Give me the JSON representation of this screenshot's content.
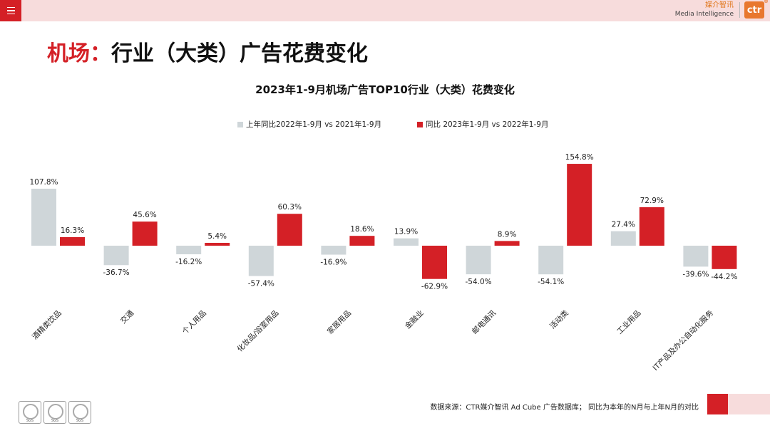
{
  "header": {
    "brand_cn": "媒介智讯",
    "brand_en": "Media Intelligence",
    "brand_logo": "ctr",
    "brand_reg": "®"
  },
  "page_title": {
    "highlight": "机场：",
    "rest": "行业（大类）广告花费变化"
  },
  "footer": {
    "source": "数据来源：CTR媒介智讯 Ad Cube 广告数据库； 同比为本年的N月与上年N月的对比",
    "badges": [
      "SGS",
      "SGS",
      "SGS"
    ]
  },
  "colors": {
    "series1": "#cfd6d9",
    "series2": "#d42026",
    "accent": "#d42026"
  },
  "chart_data": {
    "type": "bar",
    "title": "2023年1-9月机场广告TOP10行业（大类）花费变化",
    "categories": [
      "酒精类饮品",
      "交通",
      "个人用品",
      "化妆品/浴室用品",
      "家居用品",
      "金融业",
      "邮电通讯",
      "活动类",
      "工业用品",
      "IT产品及办公自动化服务"
    ],
    "series": [
      {
        "name": "上年同比2022年1-9月  vs 2021年1-9月",
        "values": [
          107.8,
          -36.7,
          -16.2,
          -57.4,
          -16.9,
          13.9,
          -54.0,
          -54.1,
          27.4,
          -39.6
        ],
        "labels": [
          "107.8%",
          "-36.7%",
          "-16.2%",
          "-57.4%",
          "-16.9%",
          "13.9%",
          "-54.0%",
          "-54.1%",
          "27.4%",
          "-39.6%"
        ]
      },
      {
        "name": "同比 2023年1-9月  vs 2022年1-9月",
        "values": [
          16.3,
          45.6,
          5.4,
          60.3,
          18.6,
          -62.9,
          8.9,
          154.8,
          72.9,
          -44.2
        ],
        "labels": [
          "16.3%",
          "45.6%",
          "5.4%",
          "60.3%",
          "18.6%",
          "-62.9%",
          "8.9%",
          "154.8%",
          "72.9%",
          "-44.2%"
        ]
      }
    ],
    "ylim": [
      -80,
      160
    ],
    "grid": false,
    "legend": "top-center",
    "xlabel": "",
    "ylabel": ""
  }
}
